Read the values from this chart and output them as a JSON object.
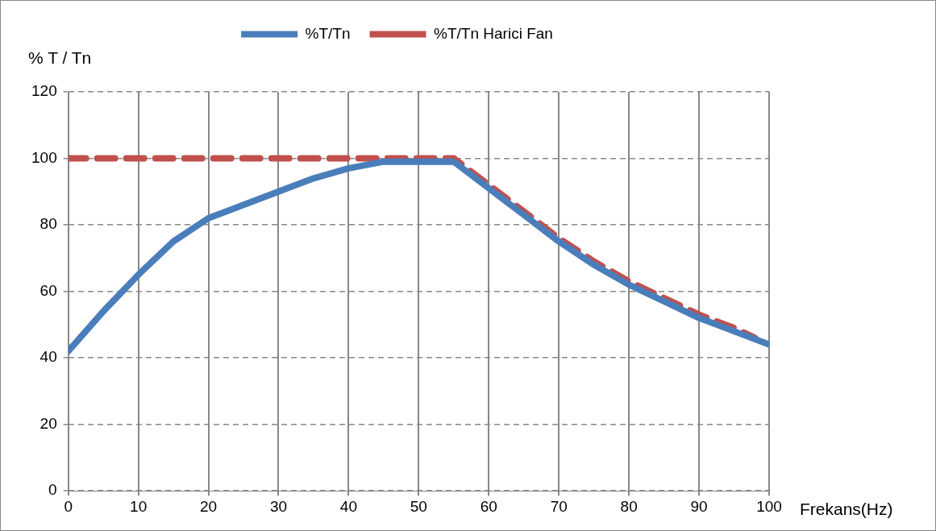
{
  "chart_data": {
    "type": "line",
    "xlabel": "Frekans(Hz)",
    "ylabel": "% T / Tn",
    "series": [
      {
        "name": "%T/Tn",
        "color": "#4a7ebb",
        "line_style": "solid",
        "x": [
          0,
          5,
          10,
          15,
          20,
          25,
          30,
          35,
          40,
          45,
          50,
          55,
          60,
          65,
          70,
          75,
          80,
          85,
          90,
          95,
          100
        ],
        "values": [
          42,
          54,
          65,
          75,
          82,
          86,
          90,
          94,
          97,
          99,
          99,
          99,
          91,
          83,
          75,
          68,
          62,
          57,
          52,
          48,
          44
        ]
      },
      {
        "name": "%T/Tn Harici Fan",
        "color": "#c0504d",
        "line_style": "dashed",
        "x": [
          0,
          5,
          10,
          15,
          20,
          25,
          30,
          35,
          40,
          45,
          50,
          55,
          60,
          65,
          70,
          75,
          80,
          85,
          90,
          95,
          98
        ],
        "values": [
          100,
          100,
          100,
          100,
          100,
          100,
          100,
          100,
          100,
          100,
          100,
          100,
          92,
          84,
          76,
          69,
          63,
          58,
          53,
          49,
          46
        ]
      }
    ],
    "xlim": [
      0,
      100
    ],
    "xticks": [
      0,
      10,
      20,
      30,
      40,
      50,
      60,
      70,
      80,
      90,
      100
    ],
    "ylim": [
      0,
      120
    ],
    "yticks": [
      0,
      20,
      40,
      60,
      80,
      100,
      120
    ],
    "grid": true,
    "legend": "top",
    "marker": "none"
  }
}
